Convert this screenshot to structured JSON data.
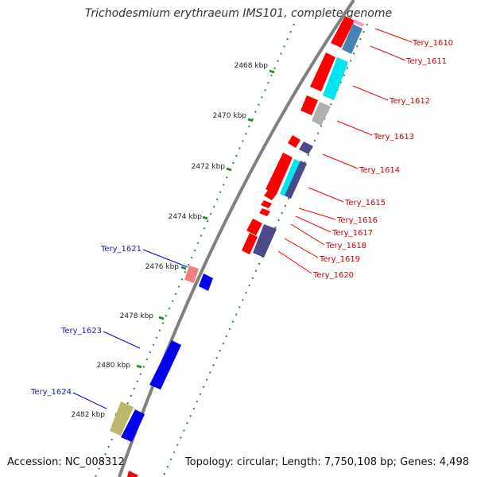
{
  "title": "Trichodesmium erythraeum IMS101, complete genome",
  "accession": "Accession: NC_008312",
  "topology": "Topology: circular; Length: 7,750,108 bp; Genes: 4,498",
  "ticks": [
    "2468 kbp",
    "2470 kbp",
    "2472 kbp",
    "2474 kbp",
    "2476 kbp",
    "2478 kbp",
    "2480 kbp",
    "2482 kbp"
  ],
  "right_labels": [
    "Tery_1610",
    "Tery_1611",
    "Tery_1612",
    "Tery_1613",
    "Tery_1614",
    "Tery_1615",
    "Tery_1616",
    "Tery_1617",
    "Tery_1618",
    "Tery_1619",
    "Tery_1620"
  ],
  "left_labels": [
    "Tery_1621",
    "Tery_1623",
    "Tery_1624"
  ],
  "colors": {
    "forward": "#ff0000",
    "reverse": "#0000ee",
    "cyan": "#00e5ee",
    "slate": "#4a4a8c",
    "steel": "#4682b4",
    "gray": "#b0b0b0",
    "pink": "#ff99cc",
    "salmon": "#f08080",
    "khaki": "#bdb76b",
    "backbone": "#808080",
    "tick": "#2a8a2a",
    "label_red": "#cc0000",
    "label_blue": "#1a1aaa"
  }
}
